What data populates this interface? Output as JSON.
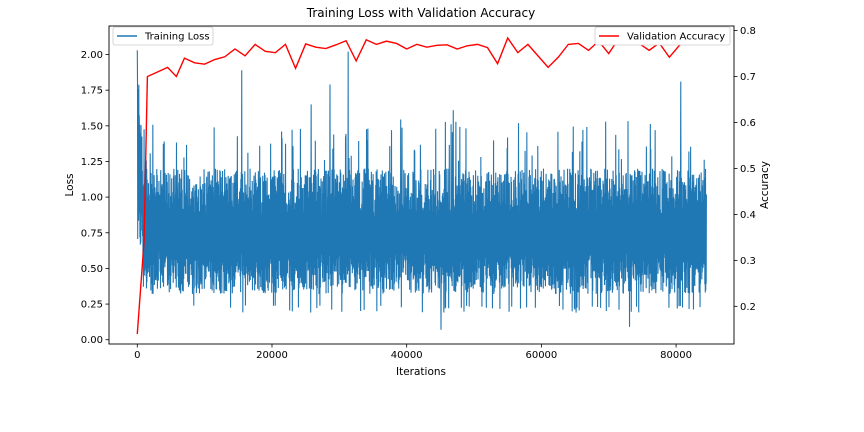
{
  "chart_data": {
    "type": "line",
    "title": "Training Loss with Validation Accuracy",
    "xlabel": "Iterations",
    "ylabel_left": "Loss",
    "ylabel_right": "Accuracy",
    "xlim": [
      -4200,
      88600
    ],
    "ylim_left": [
      -0.03,
      2.2
    ],
    "ylim_right": [
      0.118,
      0.81
    ],
    "x_ticks": [
      0,
      20000,
      40000,
      60000,
      80000
    ],
    "y_ticks_left": [
      0.0,
      0.25,
      0.5,
      0.75,
      1.0,
      1.25,
      1.5,
      1.75,
      2.0
    ],
    "y_ticks_right": [
      0.2,
      0.3,
      0.4,
      0.5,
      0.6,
      0.7,
      0.8
    ],
    "grid": false,
    "series": [
      {
        "name": "Training Loss",
        "axis": "left",
        "color": "#1f77b4",
        "x_range": [
          0,
          84500
        ],
        "typical_band": [
          0.32,
          1.2
        ],
        "initial_peak": 2.03,
        "spikes": [
          {
            "x": 15500,
            "y": 1.89
          },
          {
            "x": 25800,
            "y": 1.65
          },
          {
            "x": 28600,
            "y": 1.79
          },
          {
            "x": 31300,
            "y": 2.02
          },
          {
            "x": 46900,
            "y": 1.61
          },
          {
            "x": 80700,
            "y": 1.81
          },
          {
            "x": 45100,
            "y": 0.07
          },
          {
            "x": 73100,
            "y": 0.09
          }
        ]
      },
      {
        "name": "Validation Accuracy",
        "axis": "right",
        "color": "#ff0000",
        "x": [
          0,
          1000,
          1500,
          3000,
          4500,
          5800,
          7000,
          8500,
          10000,
          11500,
          13000,
          14500,
          16000,
          17500,
          19000,
          20500,
          22000,
          23500,
          25000,
          26500,
          28000,
          29500,
          31000,
          32500,
          34000,
          35500,
          37000,
          38500,
          40000,
          41500,
          43000,
          44500,
          46000,
          47500,
          49000,
          50500,
          52000,
          53500,
          55000,
          56500,
          58000,
          59500,
          61000,
          62500,
          64000,
          65500,
          67000,
          68500,
          70000,
          71500,
          73000,
          74500,
          76000,
          77500,
          79000,
          80500,
          82000,
          83500,
          84500
        ],
        "values": [
          0.14,
          0.34,
          0.7,
          0.71,
          0.72,
          0.7,
          0.74,
          0.73,
          0.727,
          0.737,
          0.743,
          0.76,
          0.745,
          0.77,
          0.755,
          0.752,
          0.77,
          0.718,
          0.771,
          0.764,
          0.761,
          0.769,
          0.778,
          0.734,
          0.78,
          0.77,
          0.777,
          0.772,
          0.76,
          0.77,
          0.764,
          0.768,
          0.769,
          0.76,
          0.767,
          0.77,
          0.763,
          0.728,
          0.784,
          0.752,
          0.77,
          0.745,
          0.72,
          0.742,
          0.77,
          0.772,
          0.757,
          0.777,
          0.75,
          0.783,
          0.77,
          0.772,
          0.757,
          0.773,
          0.742,
          0.768,
          0.78,
          0.775,
          0.775
        ]
      }
    ],
    "legend": [
      "top-left: Training Loss",
      "top-right: Validation Accuracy"
    ]
  }
}
